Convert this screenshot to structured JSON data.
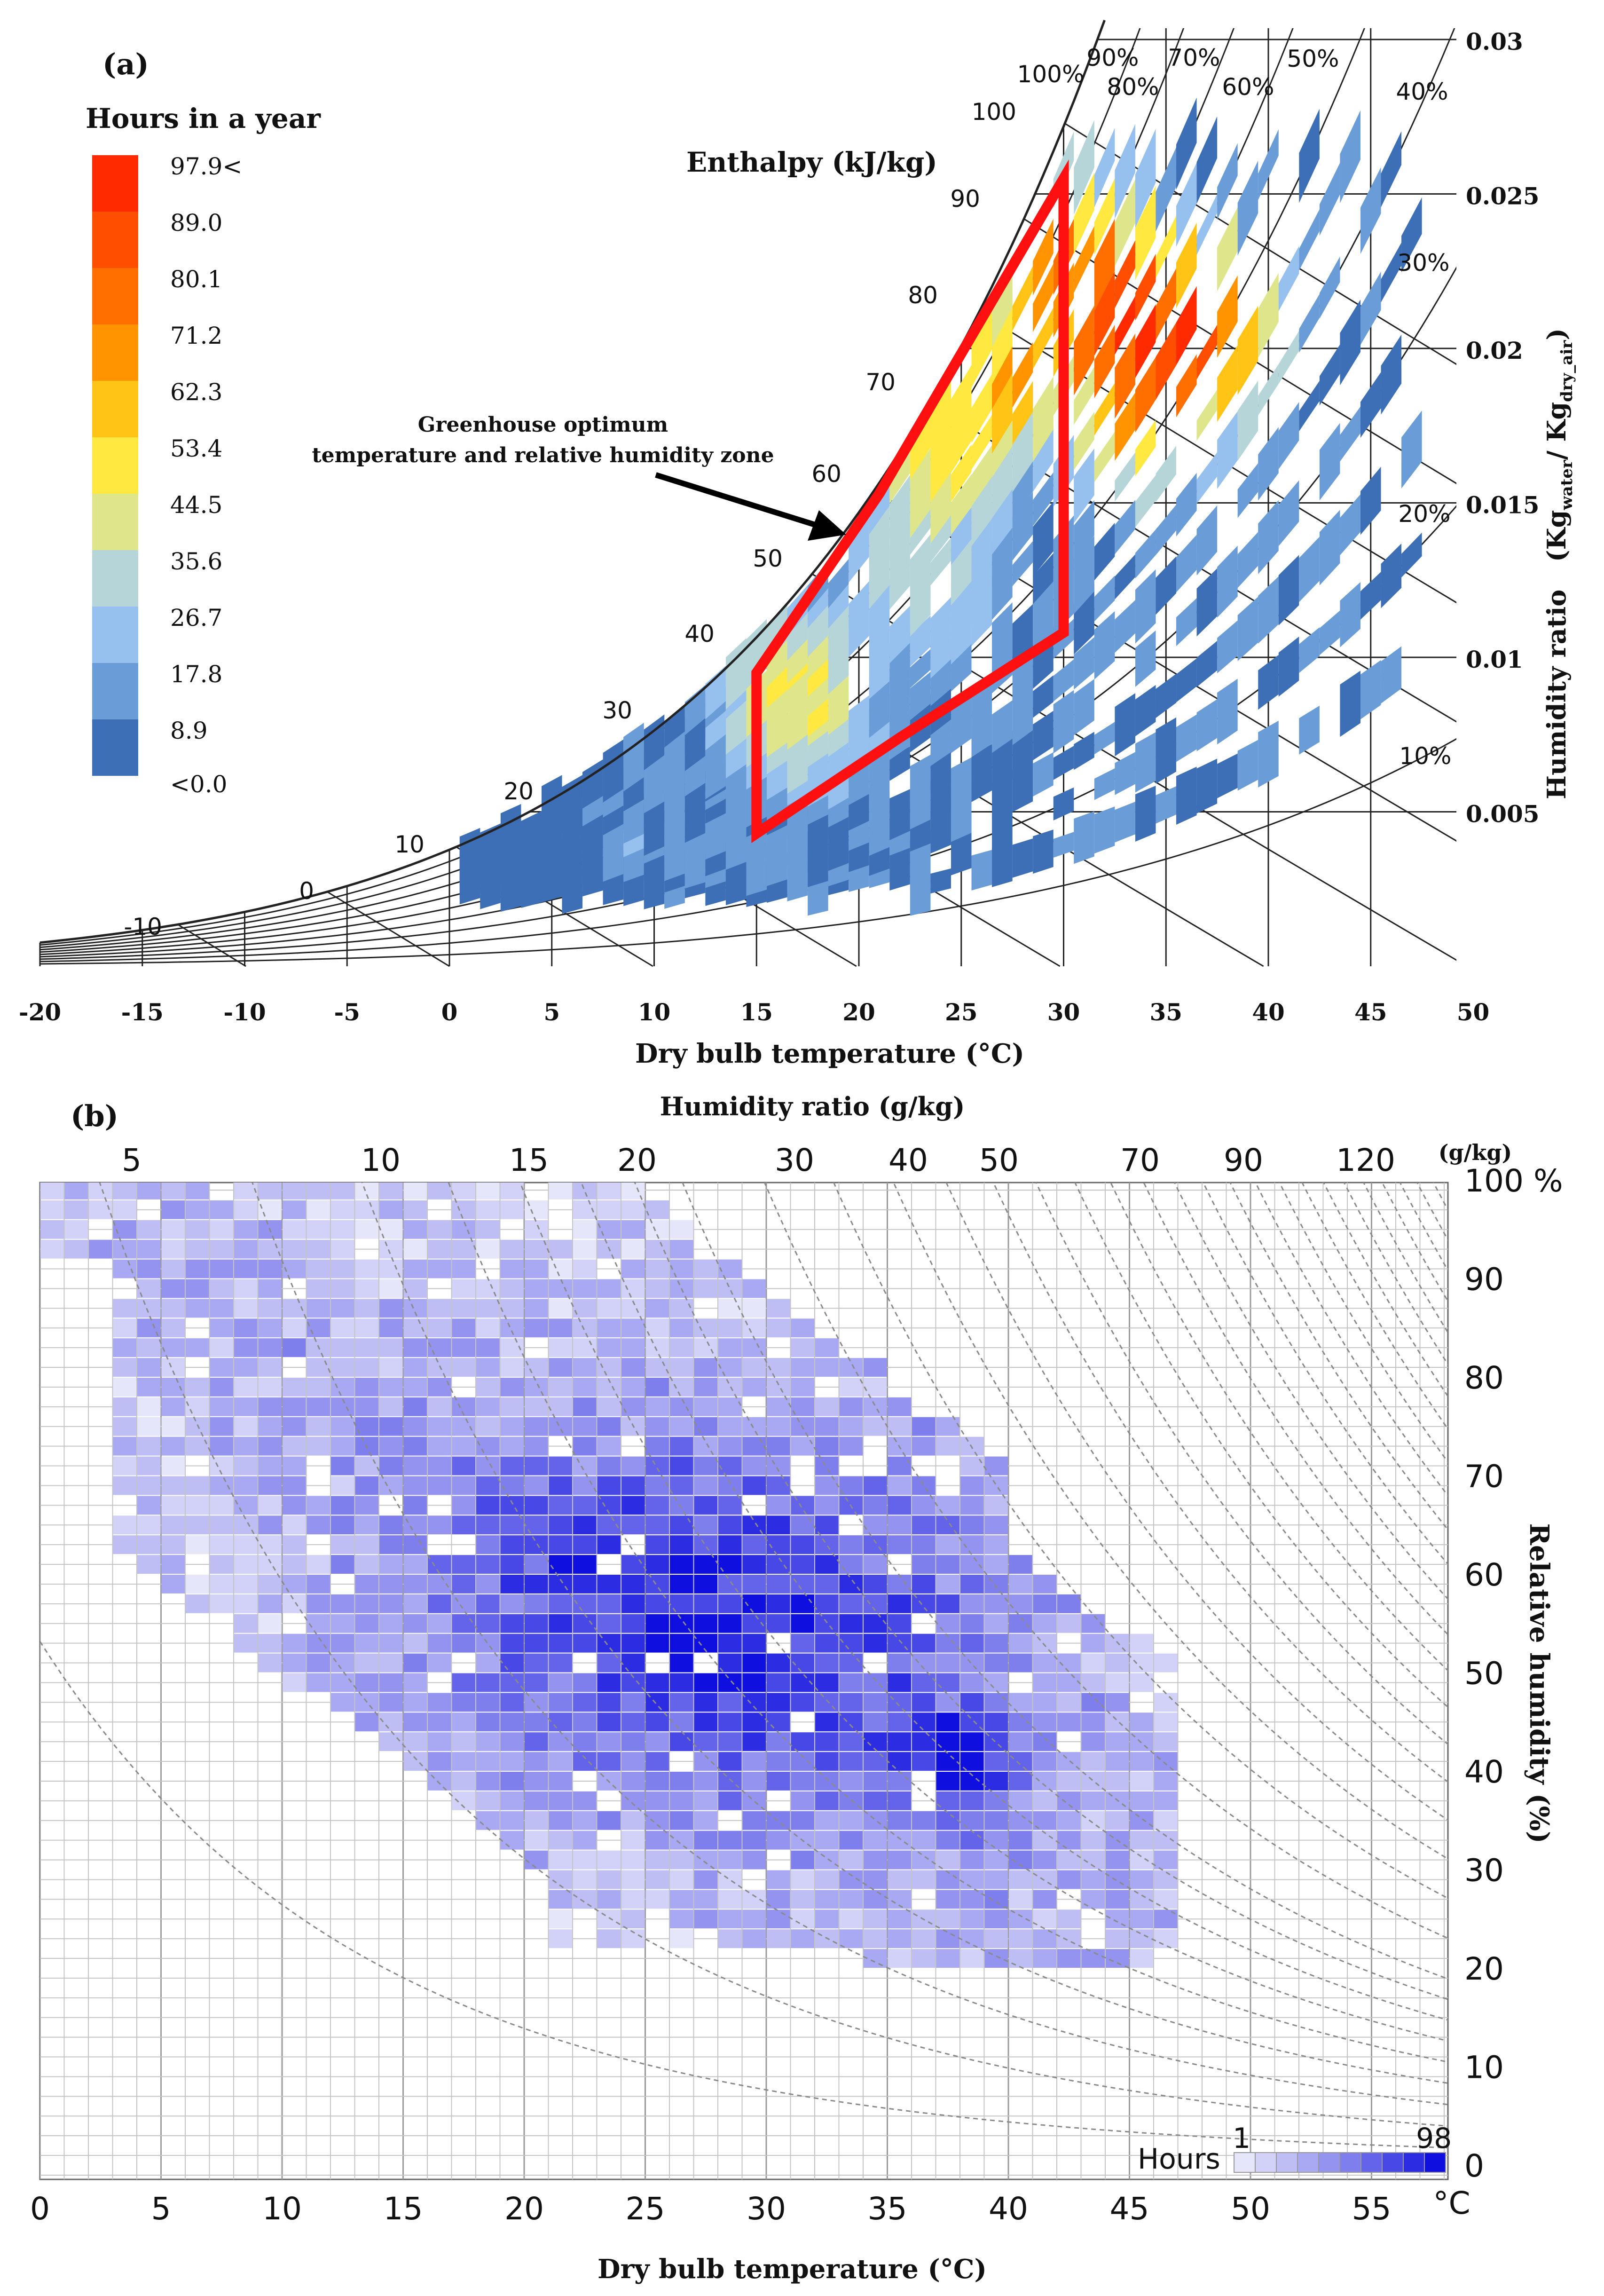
{
  "panel_a": {
    "label": "(a)",
    "legend_title": "Hours in a year",
    "legend_items": [
      {
        "label": "97.9<",
        "color": "#ff2a00"
      },
      {
        "label": "89.0",
        "color": "#ff4e00"
      },
      {
        "label": "80.1",
        "color": "#ff6f00"
      },
      {
        "label": "71.2",
        "color": "#ff9300"
      },
      {
        "label": "62.3",
        "color": "#ffc416"
      },
      {
        "label": "53.4",
        "color": "#ffe840"
      },
      {
        "label": "44.5",
        "color": "#dfe58a"
      },
      {
        "label": "35.6",
        "color": "#b5d5d8"
      },
      {
        "label": "26.7",
        "color": "#96c0ee"
      },
      {
        "label": "17.8",
        "color": "#6a9dd8"
      },
      {
        "label": "8.9",
        "color": "#3d6fb6"
      },
      {
        "label": "<0.0",
        "color": "#ffffff"
      }
    ],
    "enthalpy_title": "Enthalpy (kJ/kg)",
    "enthalpy_labels": [
      "-10",
      "0",
      "10",
      "20",
      "30",
      "40",
      "50",
      "60",
      "70",
      "80",
      "90",
      "100"
    ],
    "rh_labels": [
      "100%",
      "90%",
      "80%",
      "70%",
      "60%",
      "50%",
      "40%",
      "30%",
      "20%",
      "10%"
    ],
    "zone_annotation_line1": "Greenhouse optimum",
    "zone_annotation_line2": "temperature and relative humidity zone",
    "zone_color": "#ff1010",
    "right_axis_title": "Humidity ratio",
    "right_axis_unit": "(Kg",
    "right_axis_unit_sub1": "water",
    "right_axis_unit_mid": "/ Kg",
    "right_axis_unit_sub2": "dry_air",
    "right_axis_unit_end": ")",
    "xlabel": "Dry bulb temperature (°C)",
    "x_ticks": [
      "-20",
      "-15",
      "-10",
      "-5",
      "0",
      "5",
      "10",
      "15",
      "20",
      "25",
      "30",
      "35",
      "40",
      "45",
      "50"
    ],
    "w_ticks": [
      "0.005",
      "0.01",
      "0.015",
      "0.02",
      "0.025",
      "0.03"
    ]
  },
  "panel_b": {
    "label": "(b)",
    "top_title": "Humidity ratio (g/kg)",
    "top_ticks": [
      "5",
      "10",
      "15",
      "20",
      "30",
      "40",
      "50",
      "70",
      "90",
      "120"
    ],
    "top_unit": "(g/kg)",
    "xlabel": "Dry bulb temperature (°C)",
    "x_ticks": [
      "0",
      "5",
      "10",
      "15",
      "20",
      "25",
      "30",
      "35",
      "40",
      "45",
      "50",
      "55"
    ],
    "x_unit": "°C",
    "rh_ticks": [
      "100 %",
      "90",
      "80",
      "70",
      "60",
      "50",
      "40",
      "30",
      "20",
      "10",
      "0"
    ],
    "ylabel": "Relative humidity (%)",
    "legend_label": "Hours",
    "legend_min": "1",
    "legend_max": "98",
    "scale_colors": [
      "#e6e6fb",
      "#d2d2f8",
      "#bebef5",
      "#a9a9f3",
      "#9494f0",
      "#7e7eed",
      "#6464ea",
      "#4848e6",
      "#2c2ce3",
      "#0f0fe0"
    ]
  },
  "chart_data": [
    {
      "type": "heatmap",
      "title": "Hours in a year (psychrometric chart)",
      "xlabel": "Dry bulb temperature (°C)",
      "ylabel": "Humidity ratio (Kg water / Kg dry air)",
      "xlim": [
        -20,
        50
      ],
      "ylim": [
        0,
        0.03
      ],
      "color_scale_hours": [
        0,
        8.9,
        17.8,
        26.7,
        35.6,
        44.5,
        53.4,
        62.3,
        71.2,
        80.1,
        89.0,
        97.9
      ],
      "optimum_zone_vertices_T_W": [
        [
          15,
          0.0043
        ],
        [
          15,
          0.0095
        ],
        [
          21,
          0.0153
        ],
        [
          30,
          0.0255
        ],
        [
          30,
          0.0108
        ],
        [
          22,
          0.0074
        ]
      ],
      "enthalpy_lines_kJkg": [
        -10,
        0,
        10,
        20,
        30,
        40,
        50,
        60,
        70,
        80,
        90,
        100
      ],
      "rh_curves_percent": [
        100,
        90,
        80,
        70,
        60,
        50,
        40,
        30,
        20,
        10
      ],
      "hotspots": [
        {
          "T": 33,
          "W": 0.021,
          "hours": 97.9
        },
        {
          "T": 36,
          "W": 0.0205,
          "hours": 89.0
        },
        {
          "T": 31,
          "W": 0.022,
          "hours": 80.1
        },
        {
          "T": 34,
          "W": 0.0185,
          "hours": 71.2
        },
        {
          "T": 27,
          "W": 0.019,
          "hours": 62.3
        },
        {
          "T": 24,
          "W": 0.017,
          "hours": 53.4
        },
        {
          "T": 17,
          "W": 0.009,
          "hours": 44.5
        },
        {
          "T": 23,
          "W": 0.013,
          "hours": 35.6
        }
      ]
    },
    {
      "type": "heatmap",
      "title": "Hours (temperature vs relative humidity)",
      "xlabel": "Dry bulb temperature (°C)",
      "ylabel": "Relative humidity (%)",
      "xlim": [
        0,
        59
      ],
      "ylim": [
        0,
        100
      ],
      "hours_range": [
        1,
        98
      ],
      "humidity_ratio_isolines_gkg": [
        5,
        10,
        15,
        20,
        30,
        40,
        50,
        70,
        90,
        120
      ],
      "cluster_center": {
        "T": 28,
        "RH": 55
      },
      "peak": {
        "T": 37.5,
        "RH": 40,
        "hours": 98
      }
    }
  ]
}
